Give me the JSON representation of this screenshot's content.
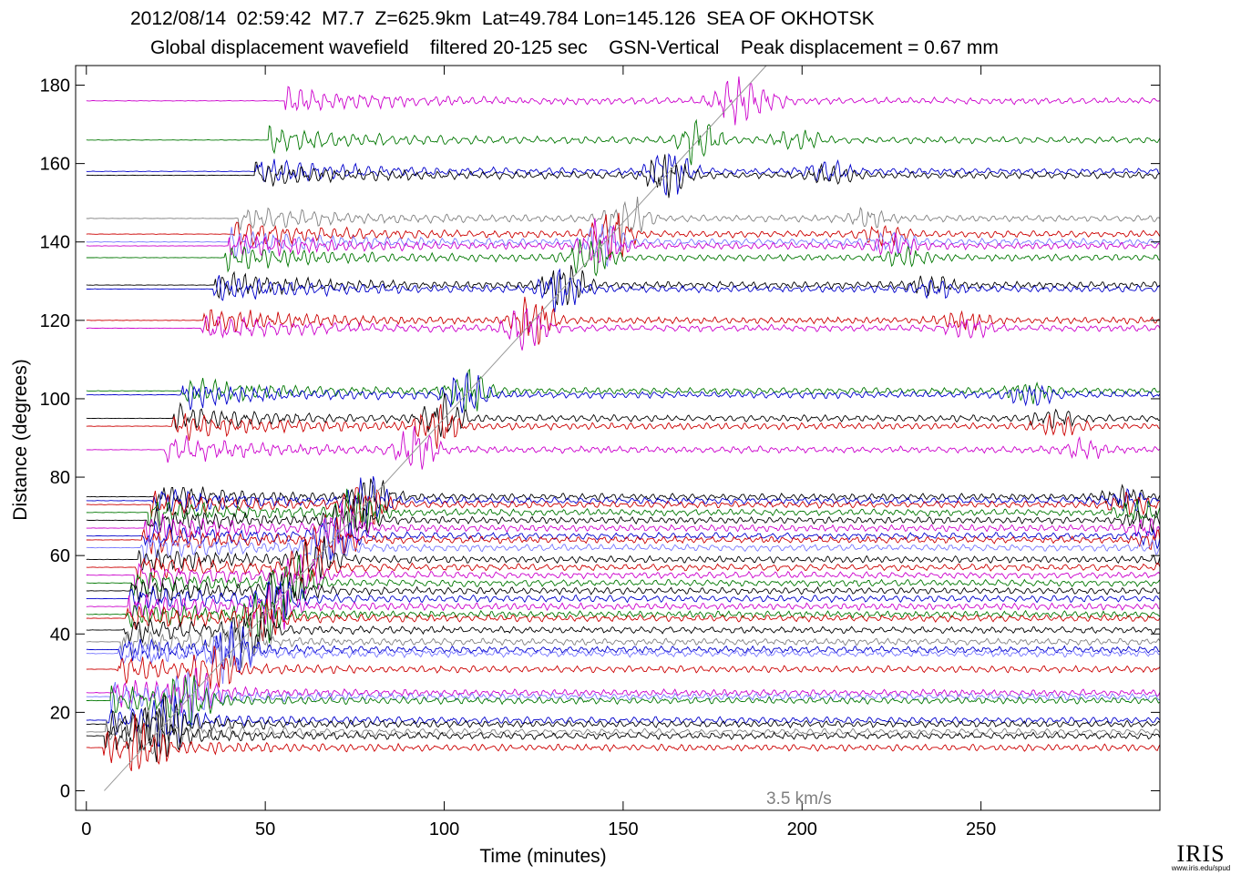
{
  "header": {
    "line1": "2012/08/14  02:59:42  M7.7  Z=625.9km  Lat=49.784 Lon=145.126  SEA OF OKHOTSK",
    "line2": "Global displacement wavefield    filtered 20-125 sec    GSN-Vertical    Peak displacement = 0.67 mm"
  },
  "logo": {
    "text": "IRIS",
    "url": "www.iris.edu/spud"
  },
  "chart_data": {
    "type": "line",
    "title": "2012/08/14  02:59:42  M7.7  Z=625.9km  Lat=49.784 Lon=145.126  SEA OF OKHOTSK",
    "subtitle": "Global displacement wavefield    filtered 20-125 sec    GSN-Vertical    Peak displacement = 0.67 mm",
    "xlabel": "Time (minutes)",
    "ylabel": "Distance (degrees)",
    "xlim": [
      -3,
      300
    ],
    "ylim": [
      -5,
      185
    ],
    "xticks": [
      0,
      50,
      100,
      150,
      200,
      250
    ],
    "yticks": [
      0,
      20,
      40,
      60,
      80,
      100,
      120,
      140,
      160,
      180
    ],
    "grid": false,
    "annotation": {
      "text": "3.5 km/s",
      "x": 190,
      "y": -2
    },
    "velocity_line": {
      "name": "3.5 km/s",
      "points": [
        [
          5,
          0
        ],
        [
          190,
          185
        ]
      ]
    },
    "trace_colors": [
      "#cc0000",
      "#000000",
      "#0000cc",
      "#007700",
      "#cc00cc",
      "#808080",
      "#7777ff"
    ],
    "traces": [
      {
        "distance": 176,
        "color": "#cc00cc"
      },
      {
        "distance": 166,
        "color": "#007700"
      },
      {
        "distance": 158,
        "color": "#0000cc"
      },
      {
        "distance": 157,
        "color": "#000000"
      },
      {
        "distance": 146,
        "color": "#808080"
      },
      {
        "distance": 142,
        "color": "#cc0000"
      },
      {
        "distance": 140,
        "color": "#7777ff"
      },
      {
        "distance": 139,
        "color": "#cc00cc"
      },
      {
        "distance": 136,
        "color": "#007700"
      },
      {
        "distance": 129,
        "color": "#000000"
      },
      {
        "distance": 128,
        "color": "#0000cc"
      },
      {
        "distance": 120,
        "color": "#cc0000"
      },
      {
        "distance": 118,
        "color": "#cc00cc"
      },
      {
        "distance": 102,
        "color": "#007700"
      },
      {
        "distance": 101,
        "color": "#0000cc"
      },
      {
        "distance": 95,
        "color": "#000000"
      },
      {
        "distance": 93,
        "color": "#cc0000"
      },
      {
        "distance": 87,
        "color": "#cc00cc"
      },
      {
        "distance": 75,
        "color": "#000000"
      },
      {
        "distance": 74,
        "color": "#0000cc"
      },
      {
        "distance": 73,
        "color": "#cc0000"
      },
      {
        "distance": 71,
        "color": "#007700"
      },
      {
        "distance": 69,
        "color": "#000000"
      },
      {
        "distance": 67,
        "color": "#cc00cc"
      },
      {
        "distance": 65,
        "color": "#0000cc"
      },
      {
        "distance": 64,
        "color": "#cc0000"
      },
      {
        "distance": 62,
        "color": "#7777ff"
      },
      {
        "distance": 59,
        "color": "#000000"
      },
      {
        "distance": 57,
        "color": "#cc0000"
      },
      {
        "distance": 55,
        "color": "#cc00cc"
      },
      {
        "distance": 53,
        "color": "#007700"
      },
      {
        "distance": 51,
        "color": "#000000"
      },
      {
        "distance": 49,
        "color": "#0000cc"
      },
      {
        "distance": 47,
        "color": "#cc00cc"
      },
      {
        "distance": 45,
        "color": "#007700"
      },
      {
        "distance": 44,
        "color": "#cc0000"
      },
      {
        "distance": 41,
        "color": "#000000"
      },
      {
        "distance": 38,
        "color": "#808080"
      },
      {
        "distance": 36,
        "color": "#0000cc"
      },
      {
        "distance": 35,
        "color": "#7777ff"
      },
      {
        "distance": 31,
        "color": "#cc0000"
      },
      {
        "distance": 25,
        "color": "#cc00cc"
      },
      {
        "distance": 24,
        "color": "#7777ff"
      },
      {
        "distance": 23,
        "color": "#007700"
      },
      {
        "distance": 18,
        "color": "#0000cc"
      },
      {
        "distance": 17,
        "color": "#000000"
      },
      {
        "distance": 15,
        "color": "#808080"
      },
      {
        "distance": 14,
        "color": "#000000"
      },
      {
        "distance": 11,
        "color": "#cc0000"
      }
    ]
  }
}
